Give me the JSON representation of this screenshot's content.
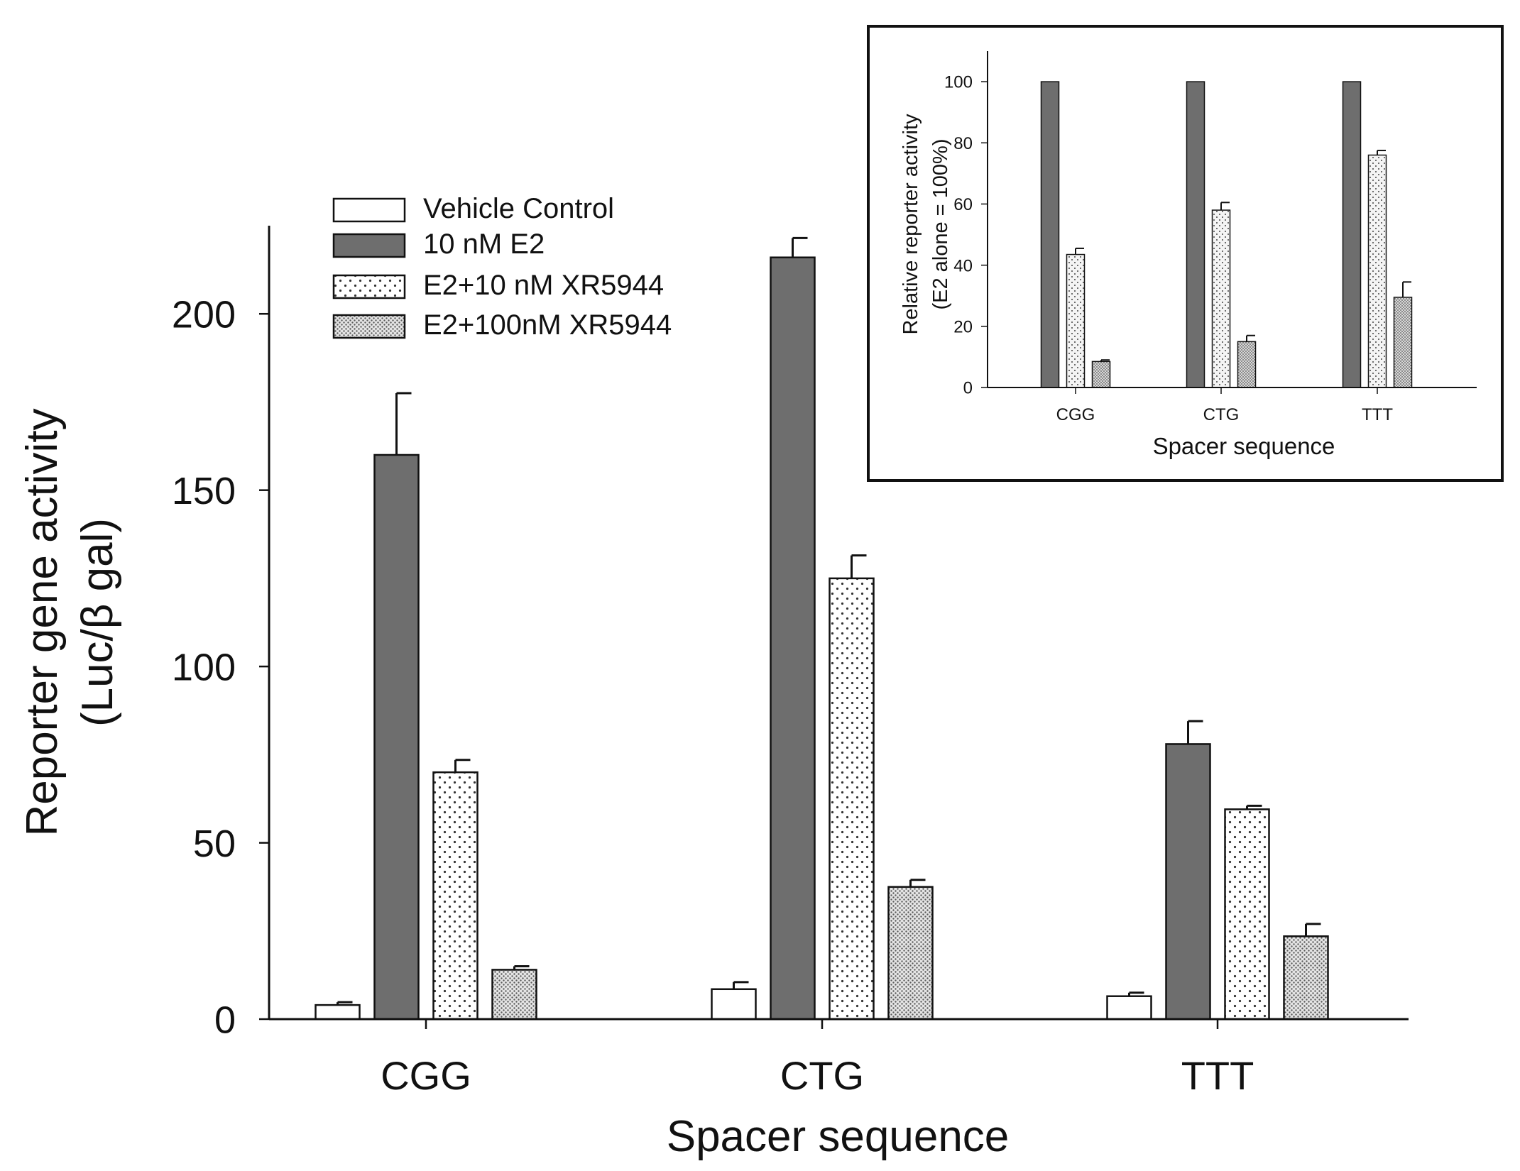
{
  "legend_title": "",
  "chart_data": [
    {
      "type": "bar",
      "id": "main",
      "categories": [
        "CGG",
        "CTG",
        "TTT"
      ],
      "series": [
        {
          "name": "Vehicle Control",
          "style": "white",
          "values": [
            4,
            8.5,
            6.5
          ],
          "errors": [
            0.8,
            2.0,
            1.0
          ]
        },
        {
          "name": "10 nM E2",
          "style": "dark",
          "values": [
            160,
            216,
            78
          ],
          "errors": [
            17.5,
            5.5,
            6.5
          ]
        },
        {
          "name": "E2+10 nM XR5944",
          "style": "sparse-dots",
          "values": [
            70,
            125,
            59.5
          ],
          "errors": [
            3.5,
            6.5,
            1.0
          ]
        },
        {
          "name": "E2+100nM XR5944",
          "style": "dense-dots",
          "values": [
            14,
            37.5,
            23.5
          ],
          "errors": [
            1.0,
            2.0,
            3.5
          ]
        }
      ],
      "xlabel": "Spacer sequence",
      "ylabel_line1": "Reporter gene activity",
      "ylabel_line2": "(Luc/β gal)",
      "yticks": [
        0,
        50,
        100,
        150,
        200
      ],
      "ylim": [
        0,
        225
      ],
      "legend_position": "top-left"
    },
    {
      "type": "bar",
      "id": "inset",
      "categories": [
        "CGG",
        "CTG",
        "TTT"
      ],
      "series": [
        {
          "name": "10 nM E2",
          "style": "dark",
          "values": [
            100,
            100,
            100
          ],
          "errors": [
            0,
            0,
            0
          ]
        },
        {
          "name": "E2+10 nM XR5944",
          "style": "sparse-dots",
          "values": [
            43.5,
            58,
            76
          ],
          "errors": [
            2.0,
            2.5,
            1.5
          ]
        },
        {
          "name": "E2+100nM XR5944",
          "style": "dense-dots",
          "values": [
            8.5,
            15,
            29.5
          ],
          "errors": [
            0.5,
            2.0,
            5.0
          ]
        }
      ],
      "xlabel": "Spacer sequence",
      "ylabel_line1": "Relative reporter activity",
      "ylabel_line2": "(E2 alone = 100%)",
      "yticks": [
        0,
        20,
        40,
        60,
        80,
        100
      ],
      "ylim": [
        0,
        110
      ],
      "legend_position": "none"
    }
  ],
  "colors": {
    "dark": "#6e6e6e",
    "axis": "#111111",
    "white": "#ffffff",
    "dot": "#333333"
  }
}
